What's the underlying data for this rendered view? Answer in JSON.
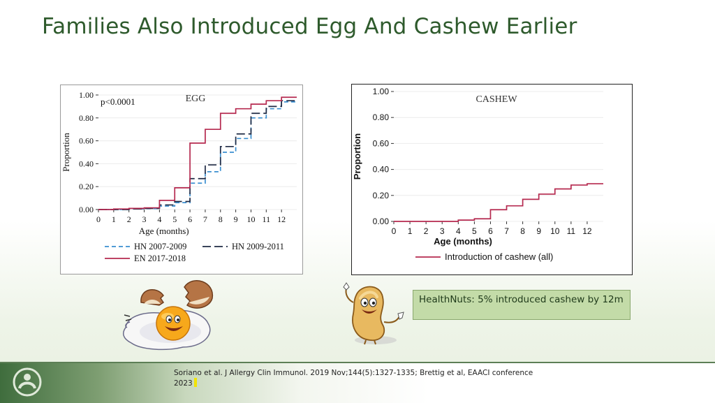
{
  "slide": {
    "title": "Families Also Introduced Egg And Cashew Earlier",
    "callout": "HealthNuts: 5% introduced cashew by 12m",
    "citation": "Soriano et al. J Allergy Clin Immunol. 2019 Nov;144(5):1327-1335; Brettig et al, EAACI conference 2023"
  },
  "colors": {
    "title": "#2e5a2c",
    "en_line": "#b5294f",
    "hn0709_line": "#3a8fd0",
    "hn0911_line": "#1f2a44",
    "cashew_line": "#b5294f",
    "callout_bg": "#c3dba8"
  },
  "icons": [
    "egg-cartoon-icon",
    "cashew-cartoon-icon",
    "logo-icon"
  ],
  "chart_data": [
    {
      "type": "line",
      "step": true,
      "title": "EGG",
      "annotation": "p<0.0001",
      "xlabel": "Age (months)",
      "ylabel": "Proportion",
      "xlim": [
        0,
        13
      ],
      "ylim": [
        0,
        1
      ],
      "xticks": [
        "0",
        "1",
        "2",
        "3",
        "4",
        "5",
        "6",
        "7",
        "8",
        "9",
        "10",
        "11",
        "12"
      ],
      "yticks": [
        "0.00",
        "0.20",
        "0.40",
        "0.60",
        "0.80",
        "1.00"
      ],
      "grid": "horizontal",
      "legend_position": "bottom",
      "x": [
        0,
        1,
        2,
        3,
        4,
        5,
        6,
        7,
        8,
        9,
        10,
        11,
        12,
        13
      ],
      "series": [
        {
          "name": "HN 2007-2009",
          "style": "dashed",
          "color": "#3a8fd0",
          "values": [
            0.0,
            0.0,
            0.005,
            0.008,
            0.03,
            0.06,
            0.23,
            0.33,
            0.5,
            0.62,
            0.8,
            0.88,
            0.94,
            0.95
          ]
        },
        {
          "name": "HN 2009-2011",
          "style": "longdash",
          "color": "#1f2a44",
          "values": [
            0.0,
            0.0,
            0.005,
            0.01,
            0.04,
            0.07,
            0.27,
            0.39,
            0.55,
            0.66,
            0.84,
            0.9,
            0.95,
            0.96
          ]
        },
        {
          "name": "EN 2017-2018",
          "style": "solid",
          "color": "#b5294f",
          "values": [
            0.0,
            0.005,
            0.01,
            0.015,
            0.08,
            0.19,
            0.58,
            0.7,
            0.84,
            0.88,
            0.92,
            0.95,
            0.98,
            0.98
          ]
        }
      ]
    },
    {
      "type": "line",
      "step": true,
      "title": "CASHEW",
      "xlabel": "Age (months)",
      "ylabel": "Proportion",
      "xlim": [
        0,
        13
      ],
      "ylim": [
        0,
        1
      ],
      "xticks": [
        "0",
        "1",
        "2",
        "3",
        "4",
        "5",
        "6",
        "7",
        "8",
        "9",
        "10",
        "11",
        "12"
      ],
      "yticks": [
        "0.00",
        "0.20",
        "0.40",
        "0.60",
        "0.80",
        "1.00"
      ],
      "grid": "horizontal",
      "legend_position": "bottom",
      "x": [
        0,
        1,
        2,
        3,
        4,
        5,
        6,
        7,
        8,
        9,
        10,
        11,
        12,
        13
      ],
      "series": [
        {
          "name": "Introduction of cashew (all)",
          "style": "solid",
          "color": "#b5294f",
          "values": [
            0.0,
            0.0,
            0.0,
            0.0,
            0.01,
            0.02,
            0.09,
            0.12,
            0.17,
            0.21,
            0.25,
            0.28,
            0.29,
            0.29
          ]
        }
      ]
    }
  ]
}
